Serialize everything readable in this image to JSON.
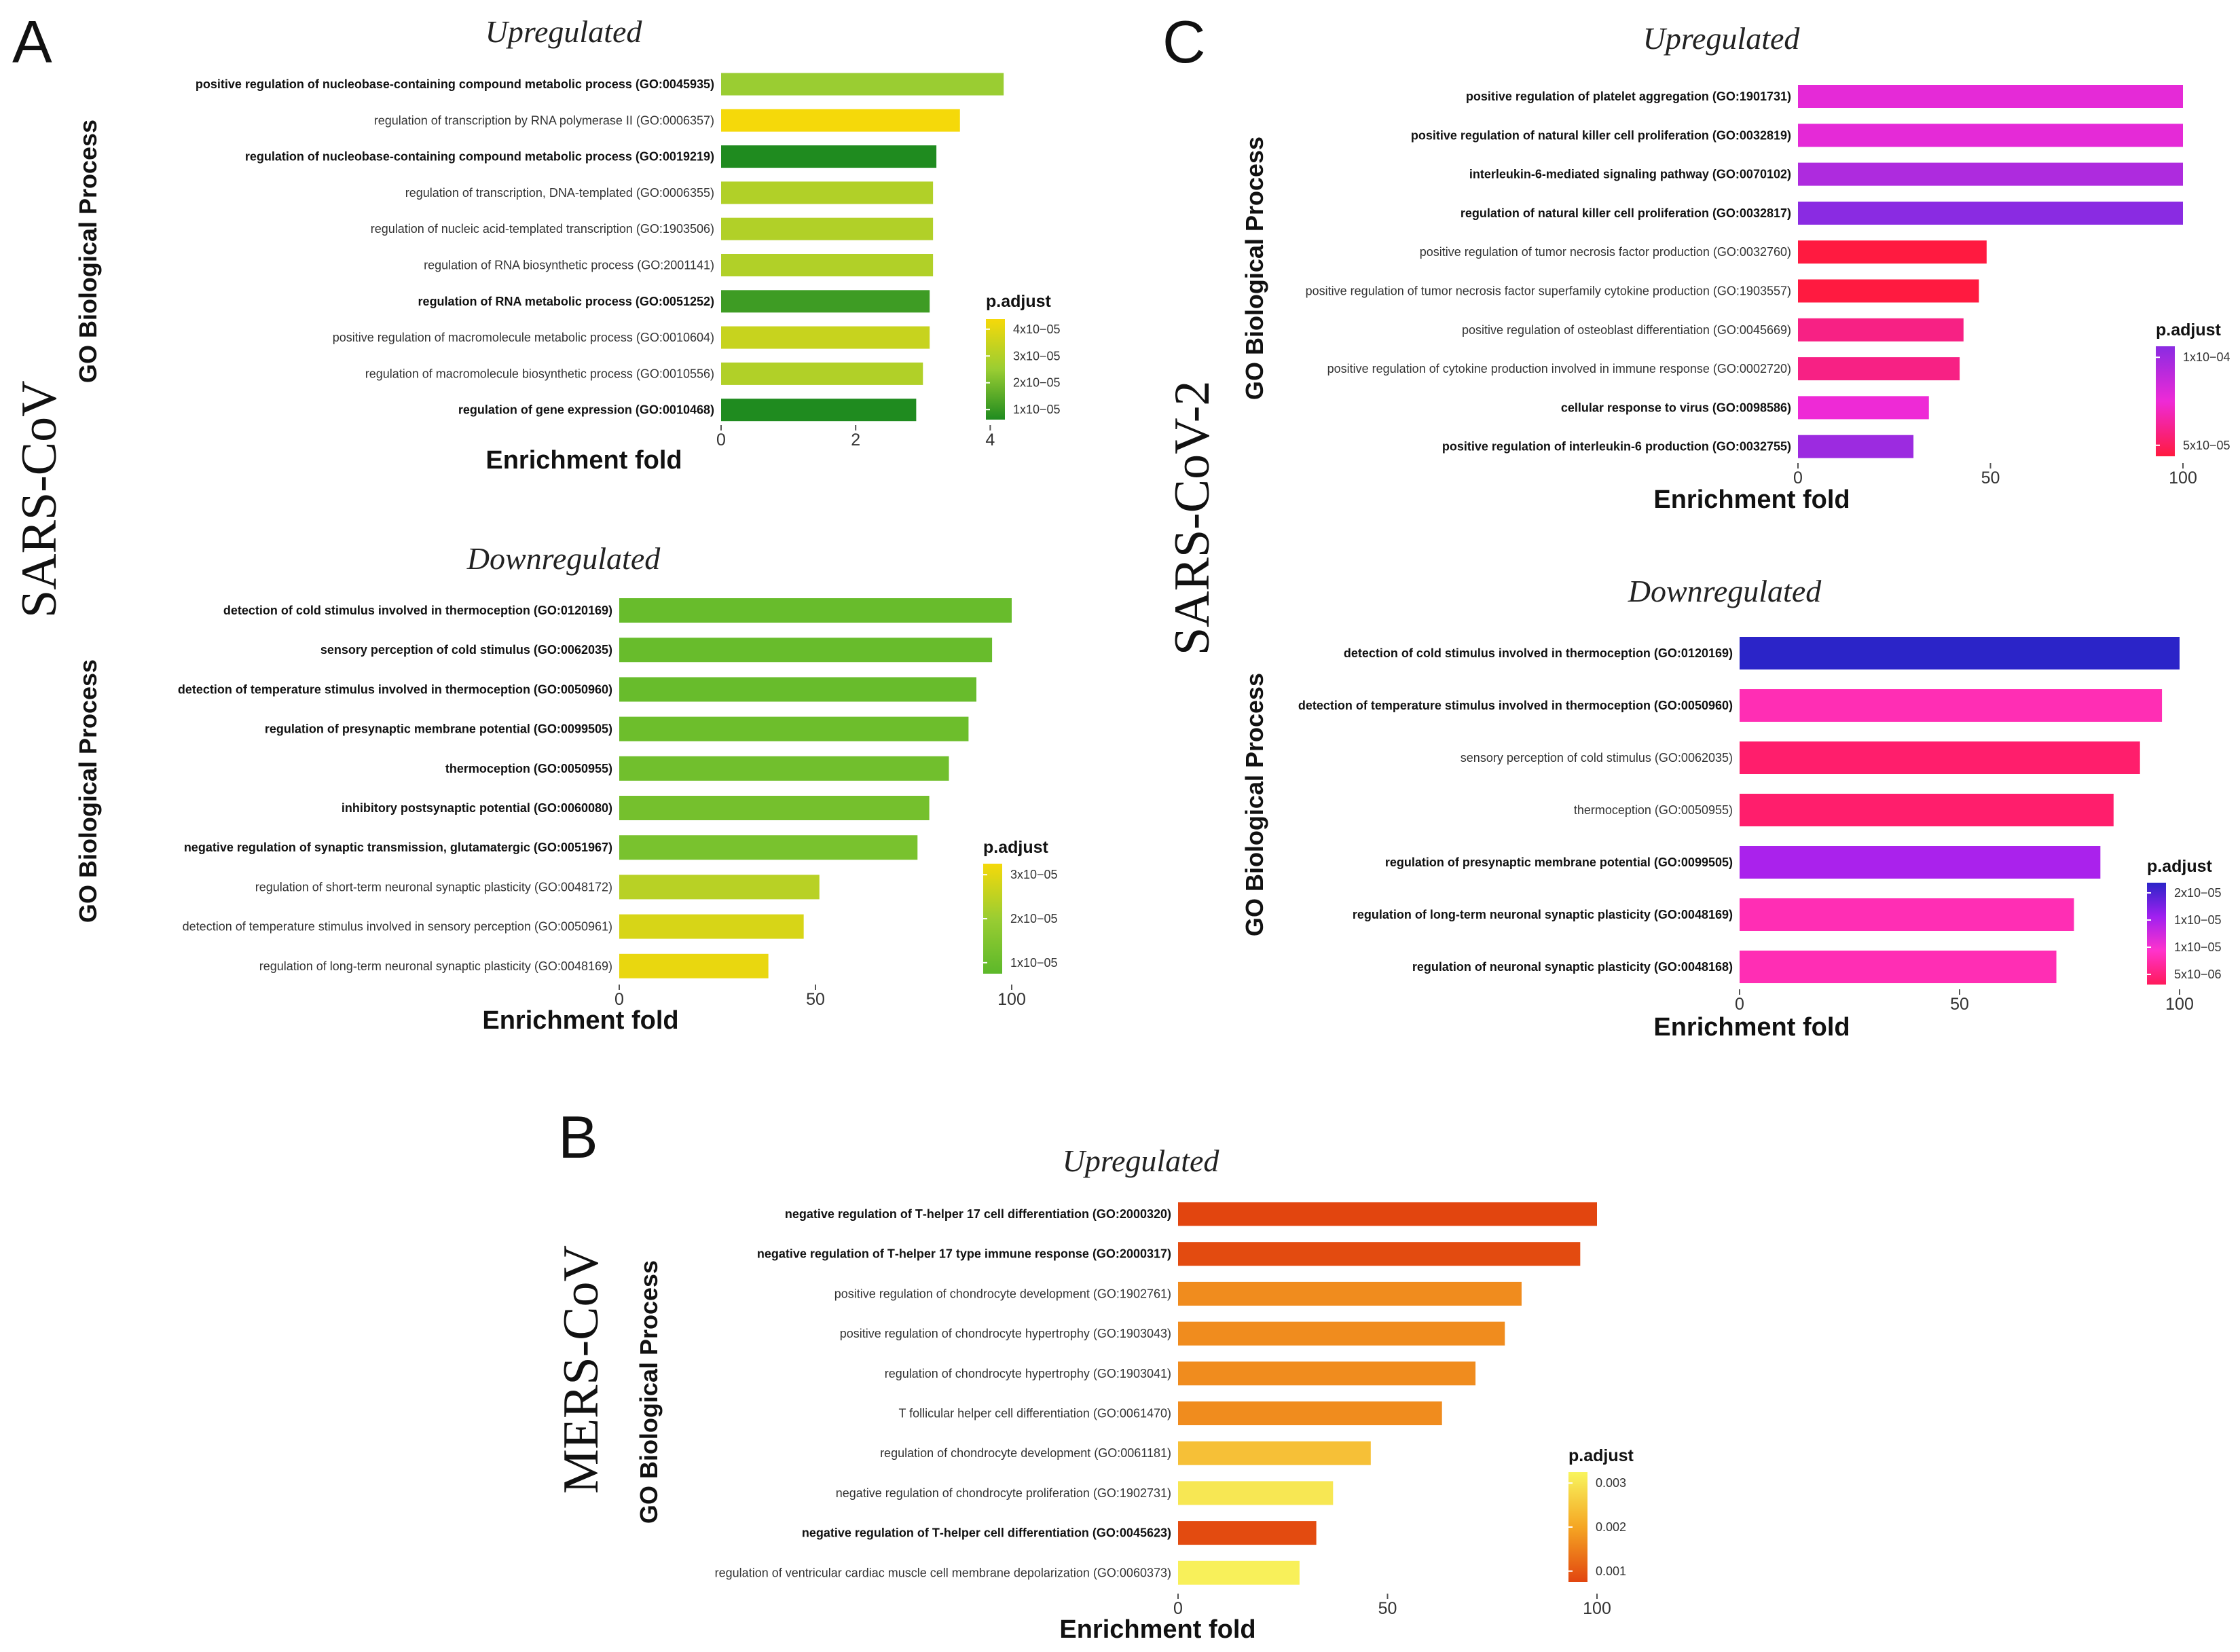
{
  "panels": {
    "A": {
      "letter": "A",
      "virus": "SARS-CoV"
    },
    "B": {
      "letter": "B",
      "virus": "MERS-CoV"
    },
    "C": {
      "letter": "C",
      "virus": "SARS-CoV-2"
    }
  },
  "chart_data": [
    {
      "id": "A-up",
      "type": "bar",
      "orientation": "horizontal",
      "title": "Upregulated",
      "xlabel": "Enrichment fold",
      "ylabel": "GO Biological Process",
      "xlim": [
        0,
        4.4
      ],
      "xticks": [
        0,
        2,
        4
      ],
      "legend": {
        "title": "p.adjust",
        "labels": [
          "4x10−05",
          "3x10−05",
          "2x10−05",
          "1x10−05"
        ],
        "colors": [
          "#f5d90a",
          "#9acd32",
          "#1f8b1f"
        ],
        "range": [
          5e-06,
          4.5e-05
        ],
        "position": "right"
      },
      "categories": [
        "positive regulation of nucleobase‐containing compound metabolic process (GO:0045935)",
        "regulation of transcription by RNA polymerase II (GO:0006357)",
        "regulation of nucleobase‐containing compound metabolic process (GO:0019219)",
        "regulation of transcription, DNA‐templated (GO:0006355)",
        "regulation of nucleic acid‐templated transcription (GO:1903506)",
        "regulation of RNA biosynthetic process (GO:2001141)",
        "regulation of RNA metabolic process (GO:0051252)",
        "positive regulation of macromolecule metabolic process (GO:0010604)",
        "regulation of macromolecule biosynthetic process (GO:0010556)",
        "regulation of gene expression (GO:0010468)"
      ],
      "bold": [
        true,
        false,
        true,
        false,
        false,
        false,
        true,
        false,
        false,
        true
      ],
      "values": [
        4.2,
        3.55,
        3.2,
        3.15,
        3.15,
        3.15,
        3.1,
        3.1,
        3.0,
        2.9
      ],
      "padjust": [
        2.5e-05,
        4.5e-05,
        5e-06,
        3e-05,
        3e-05,
        3e-05,
        1e-05,
        3.5e-05,
        3e-05,
        5e-06
      ]
    },
    {
      "id": "A-down",
      "type": "bar",
      "orientation": "horizontal",
      "title": "Downregulated",
      "xlabel": "Enrichment fold",
      "ylabel": "GO Biological Process",
      "xlim": [
        0,
        100
      ],
      "xticks": [
        0,
        50,
        100
      ],
      "legend": {
        "title": "p.adjust",
        "labels": [
          "3x10−05",
          "2x10−05",
          "1x10−05"
        ],
        "colors": [
          "#f5d90a",
          "#9acd32",
          "#5cb82a"
        ],
        "range": [
          5e-06,
          3.5e-05
        ],
        "position": "right"
      },
      "categories": [
        "detection of cold stimulus involved in thermoception (GO:0120169)",
        "sensory perception of cold stimulus (GO:0062035)",
        "detection of temperature stimulus involved in thermoception (GO:0050960)",
        "regulation of presynaptic membrane potential (GO:0099505)",
        "thermoception (GO:0050955)",
        "inhibitory postsynaptic potential (GO:0060080)",
        "negative regulation of synaptic transmission, glutamatergic (GO:0051967)",
        "regulation of short‐term neuronal synaptic plasticity (GO:0048172)",
        "detection of temperature stimulus involved in sensory perception (GO:0050961)",
        "regulation of long‐term neuronal synaptic plasticity (GO:0048169)"
      ],
      "bold": [
        true,
        true,
        true,
        true,
        true,
        true,
        true,
        false,
        false,
        false
      ],
      "values": [
        100,
        95,
        91,
        89,
        84,
        79,
        76,
        51,
        47,
        38
      ],
      "padjust": [
        8e-06,
        8e-06,
        8e-06,
        9e-06,
        1e-05,
        1.1e-05,
        1.2e-05,
        2.5e-05,
        3e-05,
        3.3e-05
      ]
    },
    {
      "id": "B-up",
      "type": "bar",
      "orientation": "horizontal",
      "title": "Upregulated",
      "xlabel": "Enrichment fold",
      "ylabel": "GO Biological Process",
      "xlim": [
        0,
        100
      ],
      "xticks": [
        0,
        50,
        100
      ],
      "legend": {
        "title": "p.adjust",
        "labels": [
          "0.003",
          "0.002",
          "0.001"
        ],
        "colors": [
          "#f8f55e",
          "#f5a623",
          "#e2450f"
        ],
        "range": [
          0.0003,
          0.0036
        ],
        "position": "right"
      },
      "categories": [
        "negative regulation of T‐helper 17 cell differentiation (GO:2000320)",
        "negative regulation of T‐helper 17 type immune response (GO:2000317)",
        "positive regulation of chondrocyte development (GO:1902761)",
        "positive regulation of chondrocyte hypertrophy (GO:1903043)",
        "regulation of chondrocyte hypertrophy (GO:1903041)",
        "T follicular helper cell differentiation (GO:0061470)",
        "regulation of chondrocyte development (GO:0061181)",
        "negative regulation of chondrocyte proliferation (GO:1902731)",
        "negative regulation of T‐helper cell differentiation (GO:0045623)",
        "regulation of ventricular cardiac muscle cell membrane depolarization (GO:0060373)"
      ],
      "bold": [
        true,
        true,
        false,
        false,
        false,
        false,
        false,
        false,
        true,
        false
      ],
      "values": [
        100,
        96,
        82,
        78,
        71,
        63,
        46,
        37,
        33,
        29
      ],
      "padjust": [
        0.0003,
        0.0004,
        0.0015,
        0.0015,
        0.0015,
        0.0015,
        0.0025,
        0.0033,
        0.0004,
        0.0035
      ]
    },
    {
      "id": "C-up",
      "type": "bar",
      "orientation": "horizontal",
      "title": "Upregulated",
      "xlabel": "Enrichment fold",
      "ylabel": "GO Biological Process",
      "xlim": [
        0,
        100
      ],
      "xticks": [
        0,
        50,
        100
      ],
      "legend": {
        "title": "p.adjust",
        "labels": [
          "1x10−04",
          "5x10−05"
        ],
        "colors": [
          "#8a2be2",
          "#ee2ad6",
          "#ff1a40"
        ],
        "range": [
          1e-05,
          0.00012
        ],
        "position": "right"
      },
      "categories": [
        "positive regulation of platelet aggregation (GO:1901731)",
        "positive regulation of natural killer cell proliferation (GO:0032819)",
        "interleukin‐6‐mediated signaling pathway (GO:0070102)",
        "regulation of natural killer cell proliferation (GO:0032817)",
        "positive regulation of tumor necrosis factor production (GO:0032760)",
        "positive regulation of tumor necrosis factor superfamily cytokine production (GO:1903557)",
        "positive regulation of osteoblast differentiation (GO:0045669)",
        "positive regulation of cytokine production involved in immune response (GO:0002720)",
        "cellular response to virus (GO:0098586)",
        "positive regulation of interleukin‐6 production (GO:0032755)"
      ],
      "bold": [
        true,
        true,
        true,
        true,
        false,
        false,
        false,
        false,
        true,
        true
      ],
      "values": [
        100,
        100,
        100,
        100,
        49,
        47,
        43,
        42,
        34,
        30
      ],
      "padjust": [
        7e-05,
        7e-05,
        0.0001,
        0.00012,
        1e-05,
        1e-05,
        3.5e-05,
        3.5e-05,
        6.5e-05,
        0.00011
      ]
    },
    {
      "id": "C-down",
      "type": "bar",
      "orientation": "horizontal",
      "title": "Downregulated",
      "xlabel": "Enrichment fold",
      "ylabel": "GO Biological Process",
      "xlim": [
        0,
        100
      ],
      "xticks": [
        0,
        50,
        100
      ],
      "legend": {
        "title": "p.adjust",
        "labels": [
          "2x10−05",
          "1x10−05",
          "1x10−05",
          "5x10−06"
        ],
        "colors": [
          "#2b24c8",
          "#a020f0",
          "#ff33cc",
          "#ff1a5a"
        ],
        "range": [
          3e-06,
          2.2e-05
        ],
        "position": "right"
      },
      "categories": [
        "detection of cold stimulus involved in thermoception (GO:0120169)",
        "detection of temperature stimulus involved in thermoception (GO:0050960)",
        "sensory perception of cold stimulus (GO:0062035)",
        "thermoception (GO:0050955)",
        "regulation of presynaptic membrane potential (GO:0099505)",
        "regulation of long‐term neuronal synaptic plasticity (GO:0048169)",
        "regulation of neuronal synaptic plasticity (GO:0048168)"
      ],
      "bold": [
        true,
        true,
        false,
        false,
        true,
        true,
        true
      ],
      "values": [
        100,
        96,
        91,
        85,
        82,
        76,
        72
      ],
      "padjust": [
        2.2e-05,
        8e-06,
        4e-06,
        4e-06,
        1.5e-05,
        8e-06,
        8e-06
      ]
    }
  ]
}
